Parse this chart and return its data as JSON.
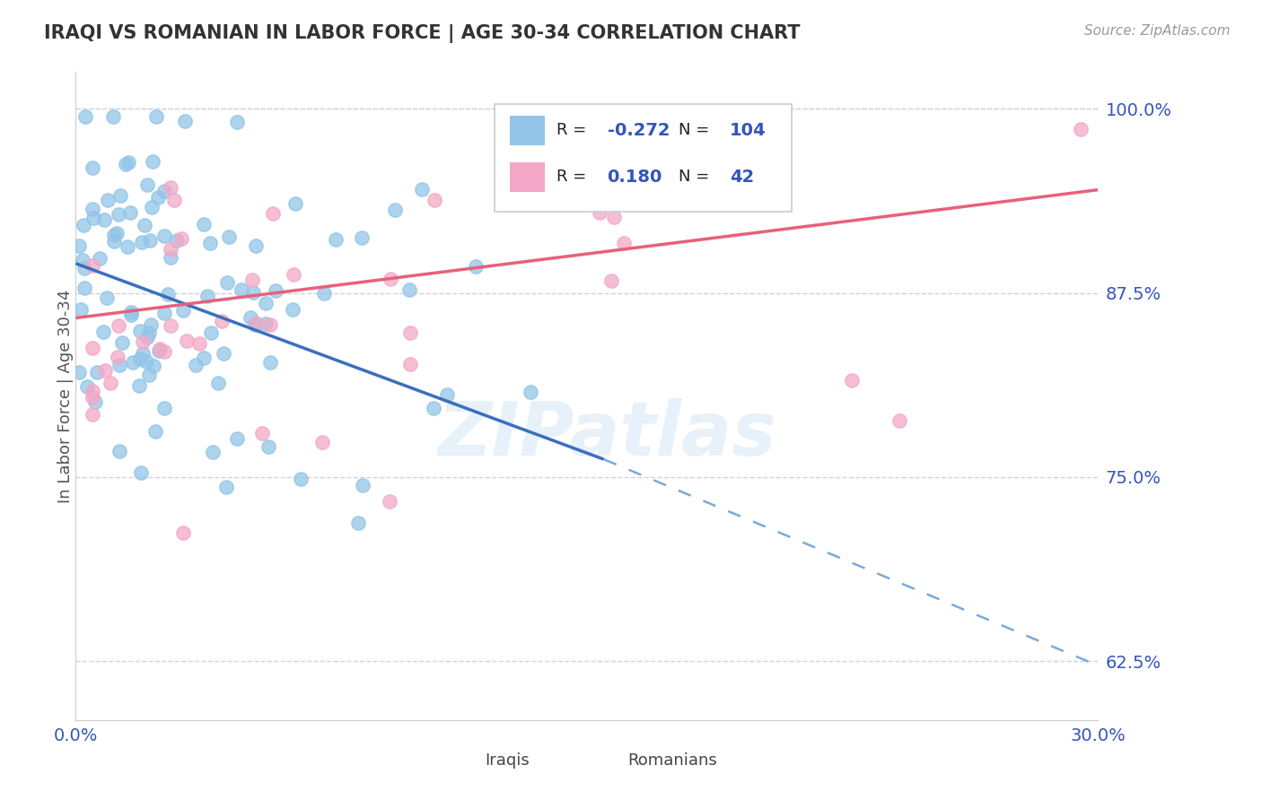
{
  "title": "IRAQI VS ROMANIAN IN LABOR FORCE | AGE 30-34 CORRELATION CHART",
  "source": "Source: ZipAtlas.com",
  "ylabel": "In Labor Force | Age 30-34",
  "xlim": [
    0.0,
    0.3
  ],
  "ylim": [
    0.585,
    1.025
  ],
  "ytick_values": [
    0.625,
    0.75,
    0.875,
    1.0
  ],
  "xtick_values": [
    0.0,
    0.3
  ],
  "iraqi_color": "#92C5E8",
  "romanian_color": "#F2A8C6",
  "trend_iraqi_solid_color": "#3A6FBF",
  "trend_iraqi_dash_color": "#7AAAD8",
  "trend_romanian_color": "#E8607A",
  "R_iraqi": -0.272,
  "N_iraqi": 104,
  "R_romanian": 0.18,
  "N_romanian": 42,
  "legend_text_color": "#3355BB",
  "grid_color": "#CCCCDD",
  "background_color": "#FFFFFF",
  "title_color": "#333333",
  "watermark": "ZIPatlas",
  "iraqi_trend_x0": 0.0,
  "iraqi_trend_y0": 0.895,
  "iraqi_trend_solid_x1": 0.155,
  "iraqi_trend_solid_y1": 0.762,
  "iraqi_trend_dash_x1": 0.3,
  "iraqi_trend_dash_y1": 0.622,
  "romanian_trend_x0": 0.0,
  "romanian_trend_y0": 0.858,
  "romanian_trend_x1": 0.3,
  "romanian_trend_y1": 0.945
}
